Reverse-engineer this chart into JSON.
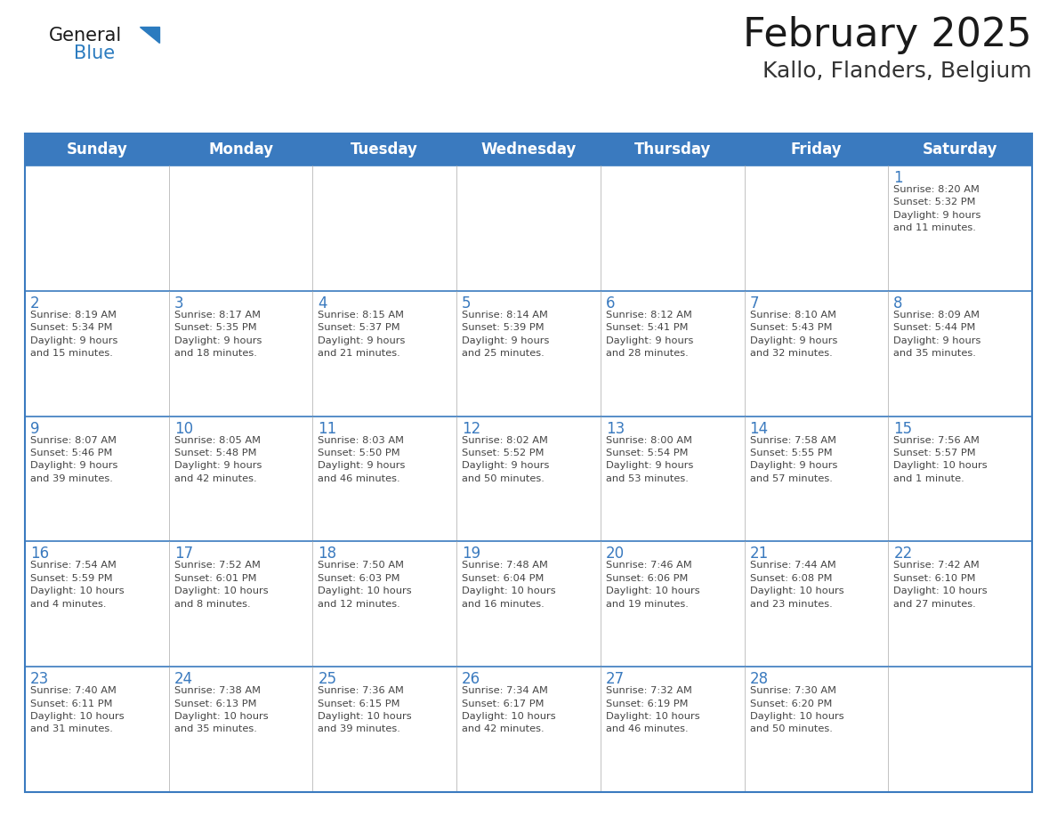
{
  "title": "February 2025",
  "subtitle": "Kallo, Flanders, Belgium",
  "header_color": "#3a7abf",
  "header_text_color": "#ffffff",
  "cell_bg_color": "#ffffff",
  "border_color": "#3a7abf",
  "day_headers": [
    "Sunday",
    "Monday",
    "Tuesday",
    "Wednesday",
    "Thursday",
    "Friday",
    "Saturday"
  ],
  "title_color": "#1a1a1a",
  "subtitle_color": "#333333",
  "day_number_color": "#3a7abf",
  "text_color": "#444444",
  "logo_general_color": "#1a1a1a",
  "logo_blue_color": "#2b7bbf",
  "weeks": [
    [
      {
        "day": "",
        "info": ""
      },
      {
        "day": "",
        "info": ""
      },
      {
        "day": "",
        "info": ""
      },
      {
        "day": "",
        "info": ""
      },
      {
        "day": "",
        "info": ""
      },
      {
        "day": "",
        "info": ""
      },
      {
        "day": "1",
        "info": "Sunrise: 8:20 AM\nSunset: 5:32 PM\nDaylight: 9 hours\nand 11 minutes."
      }
    ],
    [
      {
        "day": "2",
        "info": "Sunrise: 8:19 AM\nSunset: 5:34 PM\nDaylight: 9 hours\nand 15 minutes."
      },
      {
        "day": "3",
        "info": "Sunrise: 8:17 AM\nSunset: 5:35 PM\nDaylight: 9 hours\nand 18 minutes."
      },
      {
        "day": "4",
        "info": "Sunrise: 8:15 AM\nSunset: 5:37 PM\nDaylight: 9 hours\nand 21 minutes."
      },
      {
        "day": "5",
        "info": "Sunrise: 8:14 AM\nSunset: 5:39 PM\nDaylight: 9 hours\nand 25 minutes."
      },
      {
        "day": "6",
        "info": "Sunrise: 8:12 AM\nSunset: 5:41 PM\nDaylight: 9 hours\nand 28 minutes."
      },
      {
        "day": "7",
        "info": "Sunrise: 8:10 AM\nSunset: 5:43 PM\nDaylight: 9 hours\nand 32 minutes."
      },
      {
        "day": "8",
        "info": "Sunrise: 8:09 AM\nSunset: 5:44 PM\nDaylight: 9 hours\nand 35 minutes."
      }
    ],
    [
      {
        "day": "9",
        "info": "Sunrise: 8:07 AM\nSunset: 5:46 PM\nDaylight: 9 hours\nand 39 minutes."
      },
      {
        "day": "10",
        "info": "Sunrise: 8:05 AM\nSunset: 5:48 PM\nDaylight: 9 hours\nand 42 minutes."
      },
      {
        "day": "11",
        "info": "Sunrise: 8:03 AM\nSunset: 5:50 PM\nDaylight: 9 hours\nand 46 minutes."
      },
      {
        "day": "12",
        "info": "Sunrise: 8:02 AM\nSunset: 5:52 PM\nDaylight: 9 hours\nand 50 minutes."
      },
      {
        "day": "13",
        "info": "Sunrise: 8:00 AM\nSunset: 5:54 PM\nDaylight: 9 hours\nand 53 minutes."
      },
      {
        "day": "14",
        "info": "Sunrise: 7:58 AM\nSunset: 5:55 PM\nDaylight: 9 hours\nand 57 minutes."
      },
      {
        "day": "15",
        "info": "Sunrise: 7:56 AM\nSunset: 5:57 PM\nDaylight: 10 hours\nand 1 minute."
      }
    ],
    [
      {
        "day": "16",
        "info": "Sunrise: 7:54 AM\nSunset: 5:59 PM\nDaylight: 10 hours\nand 4 minutes."
      },
      {
        "day": "17",
        "info": "Sunrise: 7:52 AM\nSunset: 6:01 PM\nDaylight: 10 hours\nand 8 minutes."
      },
      {
        "day": "18",
        "info": "Sunrise: 7:50 AM\nSunset: 6:03 PM\nDaylight: 10 hours\nand 12 minutes."
      },
      {
        "day": "19",
        "info": "Sunrise: 7:48 AM\nSunset: 6:04 PM\nDaylight: 10 hours\nand 16 minutes."
      },
      {
        "day": "20",
        "info": "Sunrise: 7:46 AM\nSunset: 6:06 PM\nDaylight: 10 hours\nand 19 minutes."
      },
      {
        "day": "21",
        "info": "Sunrise: 7:44 AM\nSunset: 6:08 PM\nDaylight: 10 hours\nand 23 minutes."
      },
      {
        "day": "22",
        "info": "Sunrise: 7:42 AM\nSunset: 6:10 PM\nDaylight: 10 hours\nand 27 minutes."
      }
    ],
    [
      {
        "day": "23",
        "info": "Sunrise: 7:40 AM\nSunset: 6:11 PM\nDaylight: 10 hours\nand 31 minutes."
      },
      {
        "day": "24",
        "info": "Sunrise: 7:38 AM\nSunset: 6:13 PM\nDaylight: 10 hours\nand 35 minutes."
      },
      {
        "day": "25",
        "info": "Sunrise: 7:36 AM\nSunset: 6:15 PM\nDaylight: 10 hours\nand 39 minutes."
      },
      {
        "day": "26",
        "info": "Sunrise: 7:34 AM\nSunset: 6:17 PM\nDaylight: 10 hours\nand 42 minutes."
      },
      {
        "day": "27",
        "info": "Sunrise: 7:32 AM\nSunset: 6:19 PM\nDaylight: 10 hours\nand 46 minutes."
      },
      {
        "day": "28",
        "info": "Sunrise: 7:30 AM\nSunset: 6:20 PM\nDaylight: 10 hours\nand 50 minutes."
      },
      {
        "day": "",
        "info": ""
      }
    ]
  ]
}
